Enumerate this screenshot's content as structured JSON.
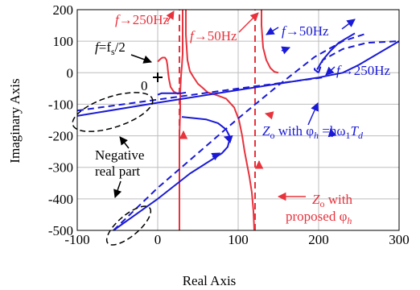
{
  "chart_data": {
    "type": "line",
    "xlabel": "Real Axis",
    "ylabel": "Imaginary Axis",
    "xlim": [
      -100,
      300
    ],
    "ylim": [
      -500,
      200
    ],
    "xticks": [
      -100,
      0,
      100,
      200,
      300
    ],
    "yticks": [
      200,
      100,
      0,
      -100,
      -200,
      -300,
      -400,
      -500
    ],
    "grid": true,
    "colors": {
      "red": "#e8323c",
      "blue": "#1a1ad6",
      "black": "#000000"
    },
    "series": [
      {
        "color": "#e8323c",
        "style": "solid",
        "points": [
          [
            27,
            -500
          ],
          [
            27,
            -350
          ],
          [
            27,
            -200
          ],
          [
            28,
            -120
          ],
          [
            28,
            -60
          ],
          [
            29,
            -10
          ],
          [
            30,
            20
          ],
          [
            31,
            60
          ],
          [
            31,
            120
          ],
          [
            31,
            200
          ]
        ]
      },
      {
        "color": "#e8323c",
        "style": "solid",
        "points": [
          [
            120,
            -500
          ],
          [
            119,
            -440
          ],
          [
            117,
            -380
          ],
          [
            114,
            -330
          ],
          [
            111,
            -290
          ],
          [
            108,
            -250
          ],
          [
            105,
            -200
          ],
          [
            101,
            -150
          ],
          [
            95,
            -110
          ],
          [
            85,
            -82
          ],
          [
            72,
            -70
          ],
          [
            62,
            -62
          ],
          [
            56,
            -48
          ],
          [
            50,
            -35
          ],
          [
            44,
            -12
          ],
          [
            40,
            5
          ],
          [
            37,
            40
          ],
          [
            35,
            120
          ],
          [
            35,
            200
          ]
        ]
      },
      {
        "color": "#e8323c",
        "style": "solid",
        "points": [
          [
            0,
            35
          ],
          [
            2,
            40
          ],
          [
            4,
            45
          ],
          [
            6,
            48
          ],
          [
            9,
            48
          ],
          [
            11,
            40
          ],
          [
            12,
            25
          ],
          [
            13,
            0
          ],
          [
            14,
            -20
          ],
          [
            16,
            -45
          ],
          [
            20,
            -60
          ],
          [
            26,
            -68
          ]
        ]
      },
      {
        "color": "#e8323c",
        "style": "solid",
        "points": [
          [
            129,
            200
          ],
          [
            129,
            150
          ],
          [
            131,
            80
          ],
          [
            135,
            40
          ],
          [
            140,
            15
          ],
          [
            145,
            3
          ],
          [
            150,
            0
          ]
        ]
      },
      {
        "color": "#e8323c",
        "style": "dashed",
        "points": [
          [
            27,
            -500
          ],
          [
            27,
            200
          ]
        ]
      },
      {
        "color": "#e8323c",
        "style": "dashed",
        "points": [
          [
            121,
            -500
          ],
          [
            121,
            200
          ]
        ]
      },
      {
        "color": "#1a1ad6",
        "style": "solid",
        "points": [
          [
            -100,
            -137
          ],
          [
            0,
            -95
          ],
          [
            100,
            -55
          ],
          [
            200,
            -15
          ],
          [
            230,
            0
          ],
          [
            250,
            25
          ],
          [
            300,
            100
          ]
        ]
      },
      {
        "color": "#1a1ad6",
        "style": "solid",
        "points": [
          [
            -55,
            -500
          ],
          [
            0,
            -400
          ],
          [
            40,
            -320
          ],
          [
            80,
            -255
          ],
          [
            87,
            -235
          ],
          [
            90,
            -205
          ],
          [
            85,
            -180
          ],
          [
            75,
            -160
          ],
          [
            60,
            -148
          ],
          [
            30,
            -140
          ]
        ]
      },
      {
        "color": "#1a1ad6",
        "style": "solid",
        "points": [
          [
            0,
            -70
          ],
          [
            5,
            -65
          ],
          [
            10,
            -65
          ],
          [
            20,
            -65
          ],
          [
            30,
            -65
          ],
          [
            35,
            -63
          ]
        ]
      },
      {
        "color": "#1a1ad6",
        "style": "solid",
        "points": [
          [
            198,
            10
          ],
          [
            205,
            40
          ],
          [
            215,
            70
          ],
          [
            225,
            95
          ],
          [
            235,
            110
          ],
          [
            245,
            125
          ]
        ]
      },
      {
        "color": "#1a1ad6",
        "style": "solid",
        "points": [
          [
            200,
            0
          ],
          [
            195,
            10
          ],
          [
            195,
            15
          ]
        ]
      },
      {
        "color": "#1a1ad6",
        "style": "dashed",
        "points": [
          [
            -100,
            -120
          ],
          [
            0,
            -85
          ],
          [
            100,
            -50
          ],
          [
            205,
            -15
          ]
        ]
      },
      {
        "color": "#1a1ad6",
        "style": "dashed",
        "points": [
          [
            -55,
            -500
          ],
          [
            0,
            -365
          ],
          [
            100,
            -145
          ],
          [
            150,
            -40
          ],
          [
            195,
            50
          ],
          [
            230,
            100
          ],
          [
            260,
            125
          ]
        ]
      },
      {
        "color": "#1a1ad6",
        "style": "dashed",
        "points": [
          [
            200,
            0
          ],
          [
            205,
            40
          ],
          [
            230,
            75
          ],
          [
            260,
            95
          ],
          [
            300,
            100
          ]
        ]
      }
    ],
    "annotations": {
      "f_fs2_prefix": "f",
      "f_fs2_mid": "=f",
      "f_fs2_sub": "s",
      "f_fs2_suffix": "/2",
      "zero_mark": "0",
      "red_f250": "f",
      "red_f250_val": "→250Hz",
      "red_f50": "f",
      "red_f50_val": "→50Hz",
      "blue_f50": "f",
      "blue_f50_val": "→50Hz",
      "blue_f250": "f",
      "blue_f250_val": "→250Hz",
      "negative_1": "Negative",
      "negative_2": "real part",
      "blue_zo": "Z",
      "blue_zo_sub": "o",
      "blue_with": " with φ",
      "blue_with_sub": "h",
      "blue_eq": " =hω",
      "blue_eq_sub1": "1",
      "blue_eq_T": "T",
      "blue_eq_sub2": "d",
      "red_zo": "Z",
      "red_zo_sub": "o",
      "red_with": " with",
      "red_proposed": "proposed φ",
      "red_proposed_sub": "h"
    }
  }
}
